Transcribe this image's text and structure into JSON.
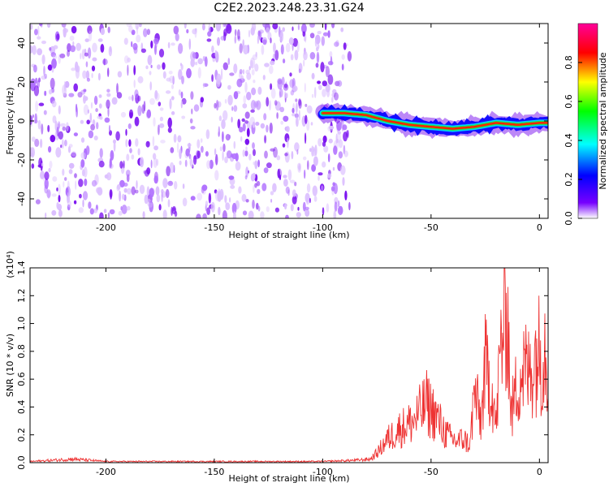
{
  "title": "C2E2.2023.248.23.31.G24",
  "chart_data": [
    {
      "type": "heatmap",
      "xlabel": "Height of straight line (km)",
      "ylabel": "Frequency (Hz)",
      "xlim": [
        -235,
        4
      ],
      "ylim": [
        -50,
        50
      ],
      "xticks": [
        -200,
        -150,
        -100,
        -50,
        0
      ],
      "yticks": [
        -40,
        -20,
        0,
        20,
        40
      ],
      "colorbar": {
        "label": "Normalized spectral amplitude",
        "range": [
          0,
          1
        ],
        "ticks": [
          "0.0",
          "0.2",
          "0.4",
          "0.6",
          "0.8"
        ],
        "colormap": [
          "#ffffff",
          "#7700ff",
          "#0000ff",
          "#00ffff",
          "#00ff00",
          "#ffff00",
          "#ff0000",
          "#ff0099"
        ]
      },
      "signal_track": [
        {
          "x": -100,
          "y": 4
        },
        {
          "x": -90,
          "y": 4
        },
        {
          "x": -80,
          "y": 3
        },
        {
          "x": -70,
          "y": 0
        },
        {
          "x": -60,
          "y": -2
        },
        {
          "x": -50,
          "y": -3
        },
        {
          "x": -40,
          "y": -4
        },
        {
          "x": -30,
          "y": -3
        },
        {
          "x": -20,
          "y": -1
        },
        {
          "x": -10,
          "y": -2
        },
        {
          "x": 0,
          "y": -1
        }
      ],
      "noise_region_x": [
        -235,
        -95
      ]
    },
    {
      "type": "line",
      "xlabel": "Height of straight line (km)",
      "ylabel": "SNR (10 * v/v)",
      "yscale_label": "(x10⁴)",
      "xlim": [
        -235,
        4
      ],
      "ylim": [
        0,
        1.4
      ],
      "xticks": [
        -200,
        -150,
        -100,
        -50,
        0
      ],
      "yticks": [
        "0.0",
        "0.2",
        "0.4",
        "0.6",
        "0.8",
        "1.0",
        "1.2",
        "1.4"
      ],
      "series": [
        {
          "color": "#ee3333",
          "points": [
            {
              "x": -235,
              "y": 0.01
            },
            {
              "x": -215,
              "y": 0.03
            },
            {
              "x": -200,
              "y": 0.01
            },
            {
              "x": -150,
              "y": 0.01
            },
            {
              "x": -100,
              "y": 0.01
            },
            {
              "x": -85,
              "y": 0.02
            },
            {
              "x": -78,
              "y": 0.03
            },
            {
              "x": -75,
              "y": 0.08
            },
            {
              "x": -70,
              "y": 0.2
            },
            {
              "x": -65,
              "y": 0.28
            },
            {
              "x": -58,
              "y": 0.35
            },
            {
              "x": -52,
              "y": 0.5
            },
            {
              "x": -48,
              "y": 0.4
            },
            {
              "x": -45,
              "y": 0.3
            },
            {
              "x": -42,
              "y": 0.22
            },
            {
              "x": -38,
              "y": 0.18
            },
            {
              "x": -35,
              "y": 0.2
            },
            {
              "x": -32,
              "y": 0.15
            },
            {
              "x": -30,
              "y": 0.6
            },
            {
              "x": -27,
              "y": 0.35
            },
            {
              "x": -25,
              "y": 0.8
            },
            {
              "x": -22,
              "y": 0.65
            },
            {
              "x": -20,
              "y": 0.3
            },
            {
              "x": -18,
              "y": 0.95
            },
            {
              "x": -15,
              "y": 1.4
            },
            {
              "x": -13,
              "y": 0.4
            },
            {
              "x": -10,
              "y": 0.7
            },
            {
              "x": -7,
              "y": 0.8
            },
            {
              "x": -5,
              "y": 0.75
            },
            {
              "x": -3,
              "y": 0.85
            },
            {
              "x": -1,
              "y": 0.95
            },
            {
              "x": 1,
              "y": 0.9
            },
            {
              "x": 3,
              "y": 1.05
            },
            {
              "x": 4,
              "y": 0.6
            }
          ]
        }
      ]
    }
  ]
}
